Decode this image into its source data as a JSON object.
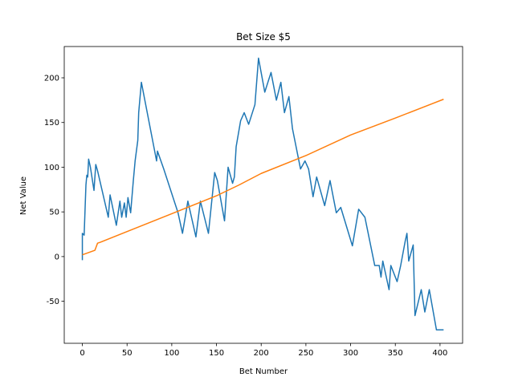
{
  "chart_data": {
    "type": "line",
    "title": "Bet Size $5",
    "x_label": "Bet Number",
    "y_label": "Net Value",
    "xlim": [
      -20.25,
      425.25
    ],
    "ylim": [
      -97,
      235
    ],
    "xticks": [
      0,
      50,
      100,
      150,
      200,
      250,
      300,
      350,
      400
    ],
    "yticks": [
      -50,
      0,
      50,
      100,
      150,
      200
    ],
    "series": [
      {
        "color": "#1f77b4",
        "x": [
          0,
          0,
          2,
          4,
          5,
          6,
          7,
          9,
          13,
          15,
          17,
          29,
          31,
          38,
          42,
          44,
          47,
          49,
          51,
          54,
          57,
          59,
          62,
          63,
          66,
          83,
          84,
          91,
          107,
          112,
          118,
          127,
          132,
          141,
          148,
          151,
          159,
          163,
          168,
          170,
          172,
          177,
          181,
          186,
          193,
          197,
          204,
          211,
          217,
          222,
          226,
          231,
          235,
          244,
          249,
          253,
          258,
          262,
          271,
          277,
          284,
          289,
          302,
          309,
          316,
          327,
          332,
          334,
          336,
          343,
          345,
          352,
          356,
          361,
          363,
          365,
          370,
          372,
          379,
          383,
          388,
          396,
          404
        ],
        "values": [
          -4,
          26,
          24,
          80,
          91,
          89,
          109,
          100,
          74,
          103,
          96,
          44,
          69,
          35,
          62,
          44,
          60,
          44,
          66,
          49,
          85,
          107,
          130,
          161,
          195,
          107,
          118,
          98,
          49,
          26,
          62,
          22,
          62,
          26,
          94,
          85,
          40,
          100,
          82,
          89,
          123,
          152,
          161,
          148,
          170,
          222,
          184,
          206,
          175,
          195,
          161,
          179,
          143,
          98,
          107,
          98,
          67,
          89,
          57,
          85,
          49,
          55,
          12,
          53,
          44,
          -10,
          -10,
          -23,
          -5,
          -37,
          -10,
          -28,
          -10,
          17,
          26,
          -5,
          13,
          -66,
          -37,
          -62,
          -37,
          -82,
          -82
        ]
      },
      {
        "color": "#ff7f0e",
        "x": [
          0,
          14,
          17,
          20,
          50,
          100,
          150,
          175,
          200,
          250,
          300,
          350,
          404
        ],
        "values": [
          2,
          7,
          15,
          16,
          28,
          48,
          68,
          80,
          93,
          113,
          136,
          155,
          176
        ]
      }
    ]
  }
}
